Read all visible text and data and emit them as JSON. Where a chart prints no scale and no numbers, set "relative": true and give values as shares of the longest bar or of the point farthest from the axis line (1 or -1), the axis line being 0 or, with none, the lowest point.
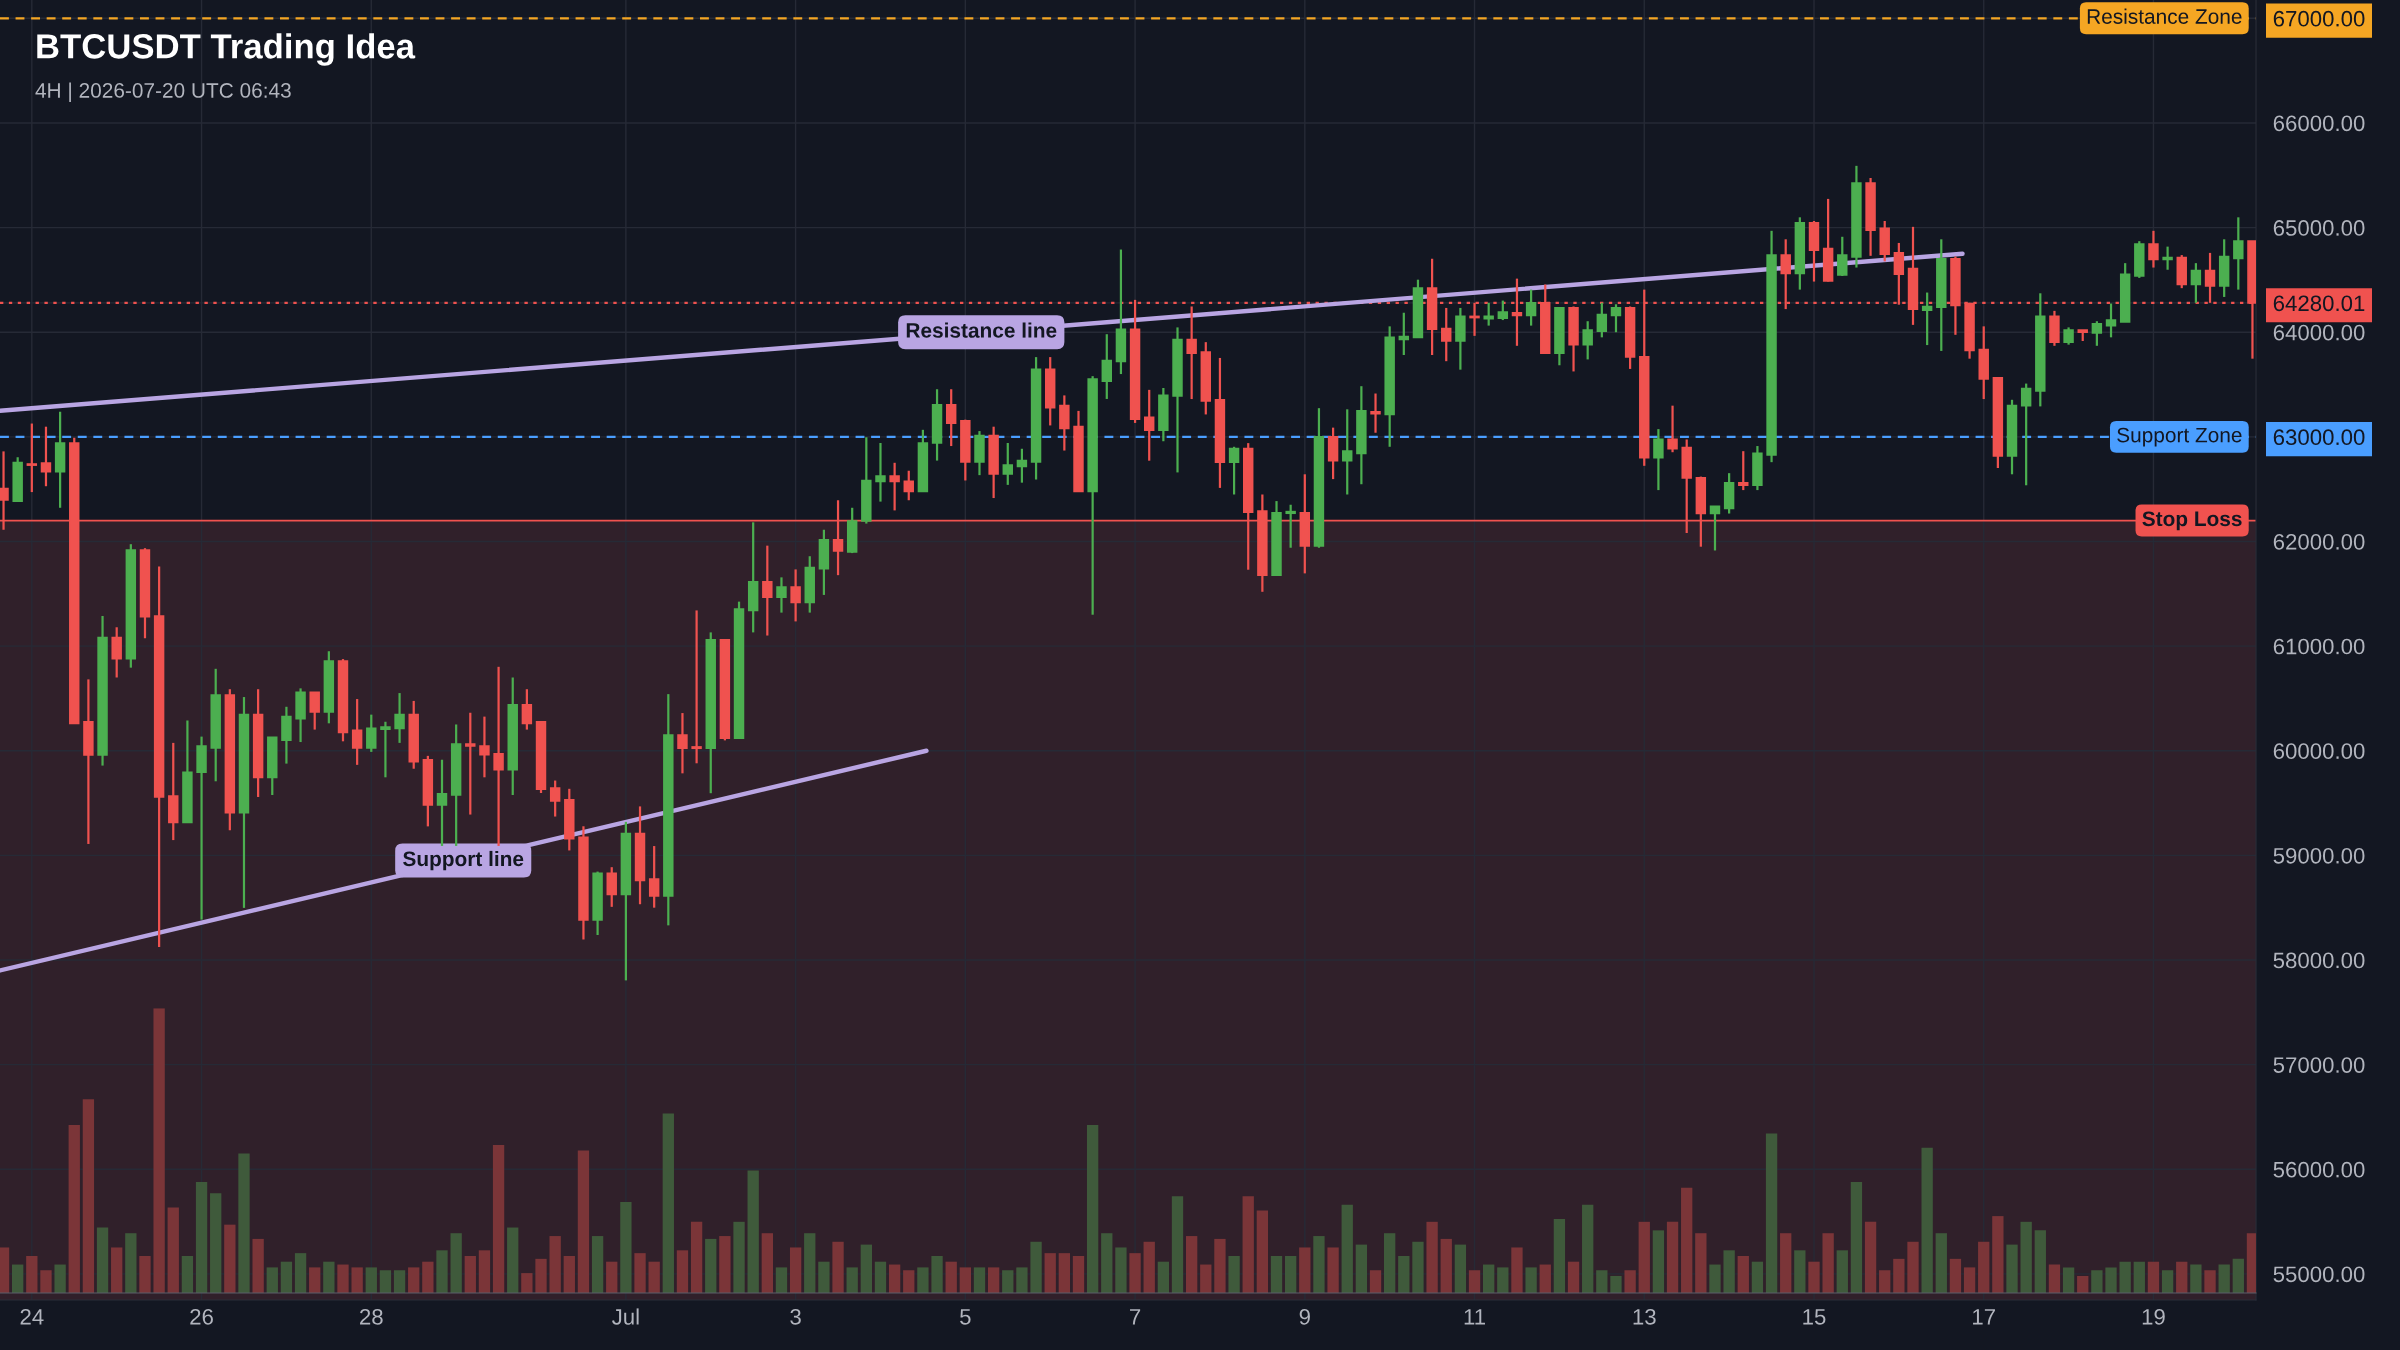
{
  "chart_data": [
    {
      "type": "candlestick",
      "title": "BTCUSDT Trading Idea",
      "subtitle": "4H | 2026-07-20 UTC 06:43",
      "x": [
        "2026-06-23T16:00",
        "2026-06-23T20:00",
        "2026-06-24T00:00",
        "2026-06-24T04:00",
        "2026-06-24T08:00",
        "2026-06-24T12:00",
        "2026-06-24T16:00",
        "2026-06-24T20:00",
        "2026-06-25T00:00",
        "2026-06-25T04:00",
        "2026-06-25T08:00",
        "2026-06-25T12:00",
        "2026-06-25T16:00",
        "2026-06-25T20:00",
        "2026-06-26T00:00",
        "2026-06-26T04:00",
        "2026-06-26T08:00",
        "2026-06-26T12:00",
        "2026-06-26T16:00",
        "2026-06-26T20:00",
        "2026-06-27T00:00",
        "2026-06-27T04:00",
        "2026-06-27T08:00",
        "2026-06-27T12:00",
        "2026-06-27T16:00",
        "2026-06-27T20:00",
        "2026-06-28T00:00",
        "2026-06-28T04:00",
        "2026-06-28T08:00",
        "2026-06-28T12:00",
        "2026-06-28T16:00",
        "2026-06-28T20:00",
        "2026-06-29T00:00",
        "2026-06-29T04:00",
        "2026-06-29T08:00",
        "2026-06-29T12:00",
        "2026-06-29T16:00",
        "2026-06-29T20:00",
        "2026-06-30T00:00",
        "2026-06-30T04:00",
        "2026-06-30T08:00",
        "2026-06-30T12:00",
        "2026-06-30T16:00",
        "2026-06-30T20:00",
        "2026-07-01T00:00",
        "2026-07-01T04:00",
        "2026-07-01T08:00",
        "2026-07-01T12:00",
        "2026-07-01T16:00",
        "2026-07-01T20:00",
        "2026-07-02T00:00",
        "2026-07-02T04:00",
        "2026-07-02T08:00",
        "2026-07-02T12:00",
        "2026-07-02T16:00",
        "2026-07-02T20:00",
        "2026-07-03T00:00",
        "2026-07-03T04:00",
        "2026-07-03T08:00",
        "2026-07-03T12:00",
        "2026-07-03T16:00",
        "2026-07-03T20:00",
        "2026-07-04T00:00",
        "2026-07-04T04:00",
        "2026-07-04T08:00",
        "2026-07-04T12:00",
        "2026-07-04T16:00",
        "2026-07-04T20:00",
        "2026-07-05T00:00",
        "2026-07-05T04:00",
        "2026-07-05T08:00",
        "2026-07-05T12:00",
        "2026-07-05T16:00",
        "2026-07-05T20:00",
        "2026-07-06T00:00",
        "2026-07-06T04:00",
        "2026-07-06T08:00",
        "2026-07-06T12:00",
        "2026-07-06T16:00",
        "2026-07-06T20:00",
        "2026-07-07T00:00",
        "2026-07-07T04:00",
        "2026-07-07T08:00",
        "2026-07-07T12:00",
        "2026-07-07T16:00",
        "2026-07-07T20:00",
        "2026-07-08T00:00",
        "2026-07-08T04:00",
        "2026-07-08T08:00",
        "2026-07-08T12:00",
        "2026-07-08T16:00",
        "2026-07-08T20:00",
        "2026-07-09T00:00",
        "2026-07-09T04:00",
        "2026-07-09T08:00",
        "2026-07-09T12:00",
        "2026-07-09T16:00",
        "2026-07-09T20:00",
        "2026-07-10T00:00",
        "2026-07-10T04:00",
        "2026-07-10T08:00",
        "2026-07-10T12:00",
        "2026-07-10T16:00",
        "2026-07-10T20:00",
        "2026-07-11T00:00",
        "2026-07-11T04:00",
        "2026-07-11T08:00",
        "2026-07-11T12:00",
        "2026-07-11T16:00",
        "2026-07-11T20:00",
        "2026-07-12T00:00",
        "2026-07-12T04:00",
        "2026-07-12T08:00",
        "2026-07-12T12:00",
        "2026-07-12T16:00",
        "2026-07-12T20:00",
        "2026-07-13T00:00",
        "2026-07-13T04:00",
        "2026-07-13T08:00",
        "2026-07-13T12:00",
        "2026-07-13T16:00",
        "2026-07-13T20:00",
        "2026-07-14T00:00",
        "2026-07-14T04:00",
        "2026-07-14T08:00",
        "2026-07-14T12:00",
        "2026-07-14T16:00",
        "2026-07-14T20:00",
        "2026-07-15T00:00",
        "2026-07-15T04:00",
        "2026-07-15T08:00",
        "2026-07-15T12:00",
        "2026-07-15T16:00",
        "2026-07-15T20:00",
        "2026-07-16T00:00",
        "2026-07-16T04:00",
        "2026-07-16T08:00",
        "2026-07-16T12:00",
        "2026-07-16T16:00",
        "2026-07-16T20:00",
        "2026-07-17T00:00",
        "2026-07-17T04:00",
        "2026-07-17T08:00",
        "2026-07-17T12:00",
        "2026-07-17T16:00",
        "2026-07-17T20:00",
        "2026-07-18T00:00",
        "2026-07-18T04:00",
        "2026-07-18T08:00",
        "2026-07-18T12:00",
        "2026-07-18T16:00",
        "2026-07-18T20:00",
        "2026-07-19T00:00",
        "2026-07-19T04:00",
        "2026-07-19T08:00",
        "2026-07-19T12:00",
        "2026-07-19T16:00",
        "2026-07-19T20:00",
        "2026-07-20T00:00",
        "2026-07-20T04:00"
      ],
      "ohlc": [
        [
          62506,
          62861,
          62112,
          62397
        ],
        [
          62386,
          62805,
          62378,
          62753
        ],
        [
          62740,
          63127,
          62472,
          62730
        ],
        [
          62749,
          63097,
          62528,
          62667
        ],
        [
          62667,
          63240,
          62322,
          62940
        ],
        [
          62940,
          62992,
          60262,
          60262
        ],
        [
          60277,
          60682,
          59109,
          59959
        ],
        [
          59959,
          61288,
          59858,
          61082
        ],
        [
          61082,
          61180,
          60700,
          60880
        ],
        [
          60880,
          61974,
          60794,
          61918
        ],
        [
          61918,
          61936,
          61075,
          61281
        ],
        [
          61288,
          61760,
          58124,
          59558
        ],
        [
          59566,
          60075,
          59146,
          59315
        ],
        [
          59315,
          60289,
          59315,
          59794
        ],
        [
          59794,
          60135,
          58386,
          60045
        ],
        [
          60027,
          60783,
          59708,
          60532
        ],
        [
          60532,
          60588,
          59240,
          59408
        ],
        [
          59408,
          60513,
          58498,
          60345
        ],
        [
          60345,
          60588,
          59558,
          59746
        ],
        [
          59746,
          60127,
          59577,
          60127
        ],
        [
          60101,
          60420,
          59877,
          60326
        ],
        [
          60307,
          60596,
          60083,
          60558
        ],
        [
          60558,
          60558,
          60202,
          60371
        ],
        [
          60371,
          60951,
          60262,
          60858
        ],
        [
          60858,
          60876,
          60090,
          60176
        ],
        [
          60195,
          60494,
          59865,
          60026
        ],
        [
          60026,
          60345,
          59989,
          60214
        ],
        [
          60206,
          60277,
          59746,
          60225
        ],
        [
          60214,
          60551,
          60075,
          60345
        ],
        [
          60345,
          60476,
          59828,
          59895
        ],
        [
          59914,
          59951,
          59277,
          59483
        ],
        [
          59483,
          59914,
          59090,
          59588
        ],
        [
          59577,
          60251,
          59090,
          60064
        ],
        [
          60064,
          60363,
          59390,
          60045
        ],
        [
          60045,
          60326,
          59746,
          59963
        ],
        [
          59970,
          60802,
          59090,
          59820
        ],
        [
          59820,
          60700,
          59577,
          60438
        ],
        [
          60438,
          60588,
          60202,
          60262
        ],
        [
          60277,
          60277,
          59596,
          59633
        ],
        [
          59644,
          59715,
          59371,
          59521
        ],
        [
          59531,
          59636,
          59047,
          59160
        ],
        [
          59173,
          59278,
          58196,
          58382
        ],
        [
          58382,
          58845,
          58239,
          58828
        ],
        [
          58828,
          58887,
          58508,
          58626
        ],
        [
          58626,
          59320,
          57805,
          59207
        ],
        [
          59207,
          59468,
          58533,
          58761
        ],
        [
          58773,
          59089,
          58500,
          58613
        ],
        [
          58613,
          60541,
          58331,
          60150
        ],
        [
          60150,
          60360,
          59784,
          60024
        ],
        [
          60036,
          61341,
          59880,
          60024
        ],
        [
          60024,
          61131,
          59594,
          61059
        ],
        [
          61059,
          61059,
          60099,
          60120
        ],
        [
          60120,
          61425,
          60120,
          61354
        ],
        [
          61341,
          62183,
          61131,
          61615
        ],
        [
          61615,
          61960,
          61101,
          61468
        ],
        [
          61468,
          61657,
          61320,
          61564
        ],
        [
          61564,
          61733,
          61236,
          61417
        ],
        [
          61417,
          61859,
          61320,
          61750
        ],
        [
          61741,
          62112,
          61489,
          62015
        ],
        [
          62015,
          62394,
          61678,
          61910
        ],
        [
          61901,
          62322,
          61889,
          62196
        ],
        [
          62196,
          62996,
          62171,
          62583
        ],
        [
          62575,
          62941,
          62381,
          62625
        ],
        [
          62625,
          62752,
          62297,
          62575
        ],
        [
          62575,
          62676,
          62394,
          62478
        ],
        [
          62478,
          63067,
          62478,
          62941
        ],
        [
          62941,
          63455,
          62773,
          63307
        ],
        [
          63307,
          63455,
          62912,
          63131
        ],
        [
          63152,
          63164,
          62583,
          62760
        ],
        [
          62760,
          63055,
          62634,
          63013
        ],
        [
          63013,
          63097,
          62415,
          62646
        ],
        [
          62646,
          62941,
          62541,
          62731
        ],
        [
          62718,
          62886,
          62562,
          62773
        ],
        [
          62760,
          63762,
          62592,
          63644
        ],
        [
          63644,
          63762,
          63109,
          63278
        ],
        [
          63299,
          63396,
          62869,
          63080
        ],
        [
          63097,
          63248,
          62478,
          62478
        ],
        [
          62478,
          63580,
          61300,
          63552
        ],
        [
          63531,
          63981,
          63362,
          63728
        ],
        [
          63720,
          64790,
          63600,
          64028
        ],
        [
          64028,
          64309,
          63133,
          63168
        ],
        [
          63186,
          63449,
          62772,
          63063
        ],
        [
          63063,
          63467,
          62958,
          63397
        ],
        [
          63390,
          64046,
          62660,
          63930
        ],
        [
          63930,
          64246,
          63361,
          63800
        ],
        [
          63811,
          63905,
          63214,
          63344
        ],
        [
          63354,
          63754,
          62512,
          62758
        ],
        [
          62758,
          62905,
          62449,
          62888
        ],
        [
          62888,
          62940,
          61730,
          62281
        ],
        [
          62291,
          62449,
          61519,
          61677
        ],
        [
          61677,
          62386,
          61677,
          62274
        ],
        [
          62270,
          62351,
          61940,
          62285
        ],
        [
          62274,
          62642,
          61695,
          61958
        ],
        [
          61958,
          63274,
          61940,
          63000
        ],
        [
          63000,
          63088,
          62596,
          62772
        ],
        [
          62772,
          63263,
          62449,
          62863
        ],
        [
          62842,
          63484,
          62547,
          63249
        ],
        [
          63239,
          63414,
          63039,
          63221
        ],
        [
          63214,
          64056,
          62905,
          63951
        ],
        [
          63930,
          64186,
          63782,
          63958
        ],
        [
          63951,
          64502,
          63951,
          64421
        ],
        [
          64421,
          64702,
          63782,
          64028
        ],
        [
          64035,
          64232,
          63723,
          63916
        ],
        [
          63916,
          64232,
          63642,
          64151
        ],
        [
          64151,
          64281,
          63965,
          64140
        ],
        [
          64130,
          64281,
          64063,
          64151
        ],
        [
          64133,
          64302,
          64116,
          64193
        ],
        [
          64186,
          64512,
          63870,
          64161
        ],
        [
          64161,
          64407,
          64063,
          64281
        ],
        [
          64281,
          64456,
          63800,
          63800
        ],
        [
          63800,
          64232,
          63684,
          64232
        ],
        [
          64232,
          64246,
          63625,
          63881
        ],
        [
          63881,
          64105,
          63740,
          64021
        ],
        [
          64011,
          64281,
          63951,
          64168
        ],
        [
          64161,
          64267,
          64000,
          64232
        ],
        [
          64232,
          64246,
          63649,
          63765
        ],
        [
          63765,
          64407,
          62723,
          62800
        ],
        [
          62800,
          63074,
          62491,
          62975
        ],
        [
          62975,
          63298,
          62853,
          62888
        ],
        [
          62898,
          62975,
          62081,
          62607
        ],
        [
          62607,
          62620,
          61950,
          62267
        ],
        [
          62267,
          62337,
          61914,
          62337
        ],
        [
          62316,
          62653,
          62267,
          62561
        ],
        [
          62561,
          62863,
          62491,
          62537
        ],
        [
          62537,
          62912,
          62491,
          62842
        ],
        [
          62828,
          64969,
          62758,
          64737
        ],
        [
          64737,
          64888,
          64221,
          64561
        ],
        [
          64561,
          65098,
          64407,
          65046
        ],
        [
          65046,
          65063,
          64484,
          64783
        ],
        [
          64800,
          65274,
          64484,
          64491
        ],
        [
          64547,
          64912,
          64537,
          64737
        ],
        [
          64719,
          65590,
          64618,
          65425
        ],
        [
          65425,
          65474,
          64730,
          64975
        ],
        [
          64993,
          65063,
          64677,
          64747
        ],
        [
          64758,
          64853,
          64263,
          64554
        ],
        [
          64607,
          65007,
          64070,
          64221
        ],
        [
          64211,
          64379,
          63877,
          64246
        ],
        [
          64239,
          64888,
          63821,
          64702
        ],
        [
          64702,
          64723,
          63975,
          64256
        ],
        [
          64274,
          64281,
          63747,
          63825
        ],
        [
          63835,
          64056,
          63361,
          63554
        ],
        [
          63565,
          63565,
          62702,
          62817
        ],
        [
          62817,
          63354,
          62642,
          63298
        ],
        [
          63298,
          63509,
          62537,
          63460
        ],
        [
          63439,
          64372,
          63291,
          64151
        ],
        [
          64151,
          64204,
          63870,
          63905
        ],
        [
          63905,
          64046,
          63881,
          64021
        ],
        [
          64021,
          64021,
          63916,
          64000
        ],
        [
          63993,
          64105,
          63870,
          64081
        ],
        [
          64063,
          64274,
          63951,
          64116
        ],
        [
          64098,
          64660,
          64098,
          64554
        ],
        [
          64537,
          64870,
          64519,
          64842
        ],
        [
          64842,
          64969,
          64618,
          64695
        ],
        [
          64695,
          64818,
          64597,
          64712
        ],
        [
          64712,
          64737,
          64421,
          64456
        ],
        [
          64456,
          64660,
          64281,
          64589
        ],
        [
          64589,
          64758,
          64281,
          64442
        ],
        [
          64442,
          64888,
          64337,
          64723
        ],
        [
          64705,
          65098,
          64407,
          64870
        ],
        [
          64870,
          64870,
          63747,
          64280.01
        ]
      ],
      "colors": [
        "#f0524f",
        "#4caf50",
        "#f0524f",
        "#f0524f",
        "#4caf50",
        "#f0524f",
        "#f0524f",
        "#4caf50",
        "#f0524f",
        "#4caf50",
        "#f0524f",
        "#f0524f",
        "#f0524f",
        "#4caf50",
        "#4caf50",
        "#4caf50",
        "#f0524f",
        "#4caf50",
        "#f0524f",
        "#4caf50",
        "#4caf50",
        "#4caf50",
        "#f0524f",
        "#4caf50",
        "#f0524f",
        "#f0524f",
        "#4caf50",
        "#4caf50",
        "#4caf50",
        "#f0524f",
        "#f0524f",
        "#4caf50",
        "#4caf50",
        "#f0524f",
        "#f0524f",
        "#f0524f",
        "#4caf50",
        "#f0524f",
        "#f0524f",
        "#f0524f",
        "#f0524f",
        "#f0524f",
        "#4caf50",
        "#f0524f",
        "#4caf50",
        "#f0524f",
        "#f0524f",
        "#4caf50",
        "#f0524f",
        "#f0524f",
        "#4caf50",
        "#f0524f",
        "#4caf50",
        "#4caf50",
        "#f0524f",
        "#4caf50",
        "#f0524f",
        "#4caf50",
        "#4caf50",
        "#f0524f",
        "#4caf50",
        "#4caf50",
        "#4caf50",
        "#f0524f",
        "#f0524f",
        "#4caf50",
        "#4caf50",
        "#f0524f",
        "#f0524f",
        "#4caf50",
        "#f0524f",
        "#4caf50",
        "#4caf50",
        "#4caf50",
        "#f0524f",
        "#f0524f",
        "#f0524f",
        "#4caf50",
        "#4caf50",
        "#4caf50",
        "#f0524f",
        "#f0524f",
        "#4caf50",
        "#4caf50",
        "#f0524f",
        "#f0524f",
        "#f0524f",
        "#4caf50",
        "#f0524f",
        "#f0524f",
        "#4caf50",
        "#4caf50",
        "#f0524f",
        "#4caf50",
        "#f0524f",
        "#4caf50",
        "#4caf50",
        "#f0524f",
        "#4caf50",
        "#4caf50",
        "#4caf50",
        "#f0524f",
        "#f0524f",
        "#4caf50",
        "#f0524f",
        "#4caf50",
        "#4caf50",
        "#f0524f",
        "#4caf50",
        "#f0524f",
        "#4caf50",
        "#f0524f",
        "#4caf50",
        "#4caf50",
        "#4caf50",
        "#f0524f",
        "#f0524f",
        "#4caf50",
        "#f0524f",
        "#f0524f",
        "#f0524f",
        "#4caf50",
        "#4caf50",
        "#f0524f",
        "#4caf50",
        "#4caf50",
        "#f0524f",
        "#4caf50",
        "#f0524f",
        "#f0524f",
        "#4caf50",
        "#4caf50",
        "#f0524f",
        "#f0524f",
        "#f0524f",
        "#f0524f",
        "#4caf50",
        "#4caf50",
        "#f0524f",
        "#f0524f",
        "#f0524f",
        "#f0524f",
        "#4caf50",
        "#4caf50",
        "#4caf50",
        "#f0524f",
        "#4caf50",
        "#f0524f",
        "#4caf50",
        "#4caf50",
        "#4caf50",
        "#4caf50",
        "#f0524f",
        "#4caf50",
        "#f0524f",
        "#4caf50",
        "#f0524f",
        "#4caf50",
        "#4caf50",
        "#f0524f"
      ],
      "series": [
        {
          "type": "line",
          "name": "Resistance line",
          "color": "#b9a5e3",
          "x": [
            "2026-06-23T15:00",
            "2026-07-16T18:00"
          ],
          "values": [
            63250,
            64750
          ]
        },
        {
          "type": "line",
          "name": "Support line",
          "color": "#b9a5e3",
          "x": [
            "2026-06-23T15:00",
            "2026-07-04T13:00"
          ],
          "values": [
            57900,
            60000
          ]
        }
      ],
      "xlim": [
        "2026-06-23T15:00",
        "2026-07-20T05:00"
      ],
      "ylim": [
        54750,
        67175
      ],
      "xticks": [
        {
          "value": "2026-06-24",
          "label": "24"
        },
        {
          "value": "2026-06-26",
          "label": "26"
        },
        {
          "value": "2026-06-28",
          "label": "28"
        },
        {
          "value": "2026-07-01",
          "label": "Jul"
        },
        {
          "value": "2026-07-03",
          "label": "3"
        },
        {
          "value": "2026-07-05",
          "label": "5"
        },
        {
          "value": "2026-07-07",
          "label": "7"
        },
        {
          "value": "2026-07-09",
          "label": "9"
        },
        {
          "value": "2026-07-11",
          "label": "11"
        },
        {
          "value": "2026-07-13",
          "label": "13"
        },
        {
          "value": "2026-07-15",
          "label": "15"
        },
        {
          "value": "2026-07-17",
          "label": "17"
        },
        {
          "value": "2026-07-19",
          "label": "19"
        }
      ],
      "yticks": [
        {
          "value": 55000,
          "label": "55000.00"
        },
        {
          "value": 56000,
          "label": "56000.00"
        },
        {
          "value": 57000,
          "label": "57000.00"
        },
        {
          "value": 58000,
          "label": "58000.00"
        },
        {
          "value": 59000,
          "label": "59000.00"
        },
        {
          "value": 60000,
          "label": "60000.00"
        },
        {
          "value": 61000,
          "label": "61000.00"
        },
        {
          "value": 62000,
          "label": "62000.00"
        },
        {
          "value": 63000,
          "label": "63000.00"
        },
        {
          "value": 64000,
          "label": "64000.00"
        },
        {
          "value": 64280.01,
          "label": "64280.01"
        },
        {
          "value": 65000,
          "label": "65000.00"
        },
        {
          "value": 66000,
          "label": "66000.00"
        },
        {
          "value": 67000,
          "label": "67000.00"
        }
      ],
      "ref_lines": [
        {
          "axis": "y",
          "value": 67000,
          "label": "Resistance Zone",
          "color": "#f5a623",
          "line_style": "dashed"
        },
        {
          "axis": "y",
          "value": 63000,
          "label": "Support Zone",
          "color": "#4a9eff",
          "line_style": "dashed"
        },
        {
          "axis": "y",
          "value": 62200,
          "label": "Stop Loss",
          "color": "#f0524f",
          "line_style": "solid"
        },
        {
          "axis": "y",
          "value": 64280.01,
          "color": "#f0524f",
          "line_style": "dotted"
        }
      ],
      "bands": [
        {
          "axis": "y",
          "from": 54750,
          "to": 62200,
          "color": "#30202a"
        }
      ],
      "grid": true
    },
    {
      "type": "bar",
      "relative": true,
      "categories": [
        null,
        null,
        null,
        null,
        null,
        null,
        null,
        null,
        null,
        null,
        null,
        null,
        null,
        null,
        null,
        null,
        null,
        null,
        null,
        null,
        null,
        null,
        null,
        null,
        null,
        null,
        null,
        null,
        null,
        null,
        null,
        null,
        null,
        null,
        null,
        null,
        null,
        null,
        null,
        null,
        null,
        null,
        null,
        null,
        null,
        null,
        null,
        null,
        null,
        null,
        null,
        null,
        null,
        null,
        null,
        null,
        null,
        null,
        null,
        null,
        null,
        null,
        null,
        null,
        null,
        null,
        null,
        null,
        null,
        null,
        null,
        null,
        null,
        null,
        null,
        null,
        null,
        null,
        null,
        null,
        null,
        null,
        null,
        null,
        null,
        null,
        null,
        null,
        null,
        null,
        null,
        null,
        null,
        null,
        null,
        null,
        null,
        null,
        null,
        null,
        null,
        null,
        null,
        null,
        null,
        null,
        null,
        null,
        null,
        null,
        null,
        null,
        null,
        null,
        null,
        null,
        null,
        null,
        null,
        null,
        null,
        null,
        null,
        null,
        null,
        null,
        null,
        null,
        null,
        null,
        null,
        null,
        null,
        null,
        null,
        null,
        null,
        null,
        null,
        null,
        null,
        null,
        null,
        null,
        null,
        null,
        null,
        null,
        null,
        null,
        null,
        null,
        null,
        null,
        null,
        null,
        null,
        null,
        null,
        null
      ],
      "values": [
        0.16,
        0.1,
        0.13,
        0.08,
        0.1,
        0.59,
        0.68,
        0.23,
        0.16,
        0.21,
        0.13,
        1,
        0.3,
        0.13,
        0.39,
        0.35,
        0.24,
        0.49,
        0.19,
        0.09,
        0.11,
        0.14,
        0.09,
        0.11,
        0.1,
        0.09,
        0.09,
        0.08,
        0.08,
        0.09,
        0.11,
        0.15,
        0.21,
        0.13,
        0.15,
        0.52,
        0.23,
        0.07,
        0.12,
        0.2,
        0.13,
        0.5,
        0.2,
        0.11,
        0.32,
        0.14,
        0.11,
        0.63,
        0.15,
        0.25,
        0.19,
        0.2,
        0.25,
        0.43,
        0.21,
        0.09,
        0.16,
        0.21,
        0.11,
        0.18,
        0.09,
        0.17,
        0.11,
        0.1,
        0.08,
        0.09,
        0.13,
        0.11,
        0.09,
        0.09,
        0.09,
        0.08,
        0.09,
        0.18,
        0.14,
        0.14,
        0.13,
        0.59,
        0.21,
        0.16,
        0.14,
        0.18,
        0.11,
        0.34,
        0.2,
        0.1,
        0.19,
        0.13,
        0.34,
        0.29,
        0.13,
        0.13,
        0.16,
        0.2,
        0.16,
        0.31,
        0.17,
        0.08,
        0.21,
        0.13,
        0.18,
        0.25,
        0.19,
        0.17,
        0.08,
        0.1,
        0.09,
        0.16,
        0.09,
        0.1,
        0.26,
        0.11,
        0.31,
        0.08,
        0.06,
        0.08,
        0.25,
        0.22,
        0.25,
        0.37,
        0.21,
        0.1,
        0.15,
        0.13,
        0.11,
        0.56,
        0.21,
        0.15,
        0.11,
        0.21,
        0.15,
        0.39,
        0.25,
        0.08,
        0.12,
        0.18,
        0.51,
        0.21,
        0.12,
        0.09,
        0.18,
        0.27,
        0.17,
        0.25,
        0.22,
        0.1,
        0.09,
        0.06,
        0.08,
        0.09,
        0.11,
        0.11,
        0.11,
        0.08,
        0.11,
        0.1,
        0.08,
        0.1,
        0.12,
        0.21
      ],
      "colors": [
        "#7b3538",
        "#3f5a3b",
        "#7b3538",
        "#7b3538",
        "#3f5a3b",
        "#7b3538",
        "#7b3538",
        "#3f5a3b",
        "#7b3538",
        "#3f5a3b",
        "#7b3538",
        "#7b3538",
        "#7b3538",
        "#3f5a3b",
        "#3f5a3b",
        "#3f5a3b",
        "#7b3538",
        "#3f5a3b",
        "#7b3538",
        "#3f5a3b",
        "#3f5a3b",
        "#3f5a3b",
        "#7b3538",
        "#3f5a3b",
        "#7b3538",
        "#7b3538",
        "#3f5a3b",
        "#3f5a3b",
        "#3f5a3b",
        "#7b3538",
        "#7b3538",
        "#3f5a3b",
        "#3f5a3b",
        "#7b3538",
        "#7b3538",
        "#7b3538",
        "#3f5a3b",
        "#7b3538",
        "#7b3538",
        "#7b3538",
        "#7b3538",
        "#7b3538",
        "#3f5a3b",
        "#7b3538",
        "#3f5a3b",
        "#7b3538",
        "#7b3538",
        "#3f5a3b",
        "#7b3538",
        "#7b3538",
        "#3f5a3b",
        "#7b3538",
        "#3f5a3b",
        "#3f5a3b",
        "#7b3538",
        "#3f5a3b",
        "#7b3538",
        "#3f5a3b",
        "#3f5a3b",
        "#7b3538",
        "#3f5a3b",
        "#3f5a3b",
        "#3f5a3b",
        "#7b3538",
        "#7b3538",
        "#3f5a3b",
        "#3f5a3b",
        "#7b3538",
        "#7b3538",
        "#3f5a3b",
        "#7b3538",
        "#3f5a3b",
        "#3f5a3b",
        "#3f5a3b",
        "#7b3538",
        "#7b3538",
        "#7b3538",
        "#3f5a3b",
        "#3f5a3b",
        "#3f5a3b",
        "#7b3538",
        "#7b3538",
        "#3f5a3b",
        "#3f5a3b",
        "#7b3538",
        "#7b3538",
        "#7b3538",
        "#3f5a3b",
        "#7b3538",
        "#7b3538",
        "#3f5a3b",
        "#3f5a3b",
        "#7b3538",
        "#3f5a3b",
        "#7b3538",
        "#3f5a3b",
        "#3f5a3b",
        "#7b3538",
        "#3f5a3b",
        "#3f5a3b",
        "#3f5a3b",
        "#7b3538",
        "#7b3538",
        "#3f5a3b",
        "#7b3538",
        "#3f5a3b",
        "#3f5a3b",
        "#7b3538",
        "#3f5a3b",
        "#7b3538",
        "#3f5a3b",
        "#7b3538",
        "#3f5a3b",
        "#3f5a3b",
        "#3f5a3b",
        "#7b3538",
        "#7b3538",
        "#3f5a3b",
        "#7b3538",
        "#7b3538",
        "#7b3538",
        "#3f5a3b",
        "#3f5a3b",
        "#7b3538",
        "#3f5a3b",
        "#3f5a3b",
        "#7b3538",
        "#3f5a3b",
        "#7b3538",
        "#7b3538",
        "#3f5a3b",
        "#3f5a3b",
        "#7b3538",
        "#7b3538",
        "#7b3538",
        "#7b3538",
        "#3f5a3b",
        "#3f5a3b",
        "#7b3538",
        "#7b3538",
        "#7b3538",
        "#7b3538",
        "#3f5a3b",
        "#3f5a3b",
        "#3f5a3b",
        "#7b3538",
        "#3f5a3b",
        "#7b3538",
        "#3f5a3b",
        "#3f5a3b",
        "#3f5a3b",
        "#3f5a3b",
        "#7b3538",
        "#3f5a3b",
        "#7b3538",
        "#3f5a3b",
        "#7b3538",
        "#3f5a3b",
        "#3f5a3b",
        "#7b3538"
      ]
    }
  ]
}
